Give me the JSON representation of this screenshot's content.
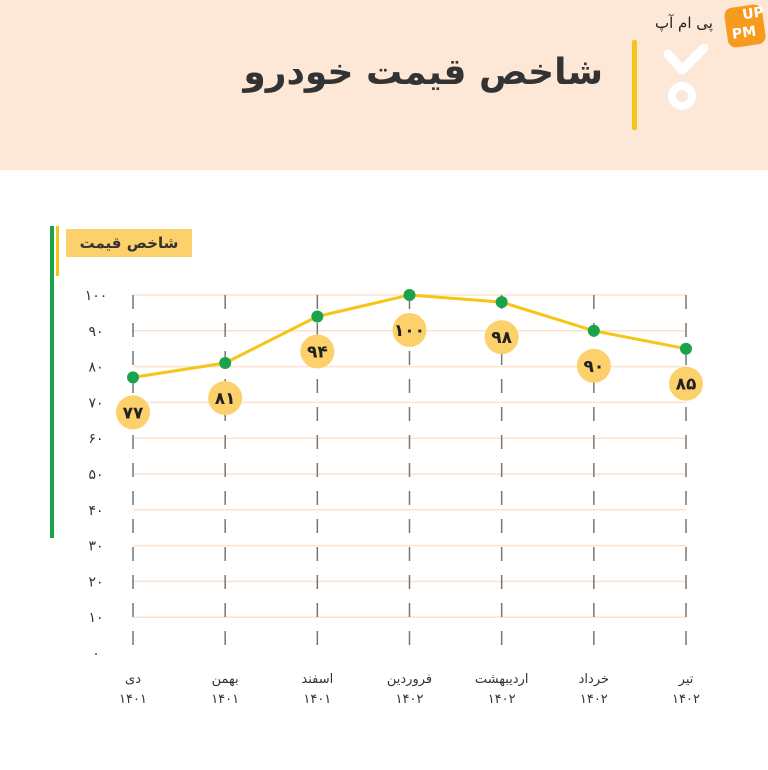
{
  "header": {
    "title": "شاخص قیمت خودرو",
    "brand": "پی ام آپ",
    "logo_text": "UP PM"
  },
  "colors": {
    "header_bg": "#fde8d8",
    "accent": "#f5c518",
    "point": "#1aa34a",
    "label_bubble": "#fcd06b"
  },
  "chart_data": {
    "type": "line",
    "title": "شاخص قیمت خودرو",
    "series_label": "شاخص قیمت",
    "categories": [
      {
        "month": "دی",
        "year": "۱۴۰۱"
      },
      {
        "month": "بهمن",
        "year": "۱۴۰۱"
      },
      {
        "month": "اسفند",
        "year": "۱۴۰۱"
      },
      {
        "month": "فروردین",
        "year": "۱۴۰۲"
      },
      {
        "month": "اردیبهشت",
        "year": "۱۴۰۲"
      },
      {
        "month": "خرداد",
        "year": "۱۴۰۲"
      },
      {
        "month": "تیر",
        "year": "۱۴۰۲"
      }
    ],
    "values": [
      77,
      81,
      94,
      100,
      98,
      90,
      85
    ],
    "value_labels": [
      "۷۷",
      "۸۱",
      "۹۴",
      "۱۰۰",
      "۹۸",
      "۹۰",
      "۸۵"
    ],
    "yticks": [
      {
        "value": 0,
        "label": "۰"
      },
      {
        "value": 10,
        "label": "۱۰"
      },
      {
        "value": 20,
        "label": "۲۰"
      },
      {
        "value": 30,
        "label": "۳۰"
      },
      {
        "value": 40,
        "label": "۴۰"
      },
      {
        "value": 50,
        "label": "۵۰"
      },
      {
        "value": 60,
        "label": "۶۰"
      },
      {
        "value": 70,
        "label": "۷۰"
      },
      {
        "value": 80,
        "label": "۸۰"
      },
      {
        "value": 90,
        "label": "۹۰"
      },
      {
        "value": 100,
        "label": "۱۰۰"
      }
    ],
    "ylim": [
      0,
      100
    ],
    "grid": true
  }
}
